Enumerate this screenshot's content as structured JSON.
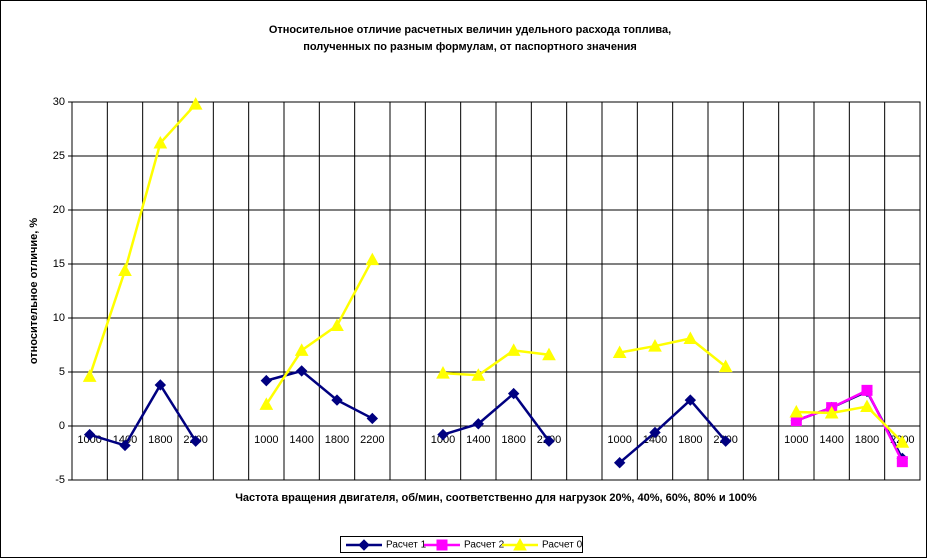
{
  "chart_data": {
    "type": "line",
    "title": "Относительное отличие расчетных величин удельного расхода топлива,",
    "subtitle": "полученных по разным формулам, от паспортного значения",
    "y_label": "относительное отличие, %",
    "x_label": "Частота вращения двигателя, об/мин, соответственно для нагрузок 20%, 40%, 60%, 80% и 100%",
    "categories": [
      "1000",
      "1400",
      "1800",
      "2200",
      null,
      "1000",
      "1400",
      "1800",
      "2200",
      null,
      "1000",
      "1400",
      "1800",
      "2200",
      null,
      "1000",
      "1400",
      "1800",
      "2200",
      null,
      "1000",
      "1400",
      "1800",
      "2200"
    ],
    "series": [
      {
        "name": "Расчет 1",
        "color": "#000080",
        "marker": "diamond",
        "values": [
          -0.8,
          -1.8,
          3.8,
          -1.4,
          null,
          4.2,
          5.1,
          2.4,
          0.7,
          null,
          -0.8,
          0.2,
          3.0,
          -1.4,
          null,
          -3.4,
          -0.6,
          2.4,
          -1.4,
          null,
          0.5,
          1.7,
          3.2,
          -3.0
        ]
      },
      {
        "name": "Расчет 2",
        "color": "#ff00ff",
        "marker": "square",
        "values": [
          null,
          null,
          null,
          null,
          null,
          null,
          null,
          null,
          null,
          null,
          null,
          null,
          null,
          null,
          null,
          null,
          null,
          null,
          null,
          null,
          0.5,
          1.7,
          3.3,
          -3.3
        ]
      },
      {
        "name": "Расчет 0",
        "color": "#ffff00",
        "marker": "triangle",
        "values": [
          4.6,
          14.4,
          26.2,
          29.8,
          null,
          2.0,
          7.0,
          9.3,
          15.4,
          null,
          4.9,
          4.7,
          7.0,
          6.6,
          null,
          6.8,
          7.4,
          8.1,
          5.5,
          null,
          1.3,
          1.2,
          1.8,
          -1.5
        ]
      }
    ],
    "ylim": [
      -5,
      30
    ],
    "yticks": [
      -5,
      0,
      5,
      10,
      15,
      20,
      25,
      30
    ],
    "grid": true,
    "legend": "bottom"
  }
}
